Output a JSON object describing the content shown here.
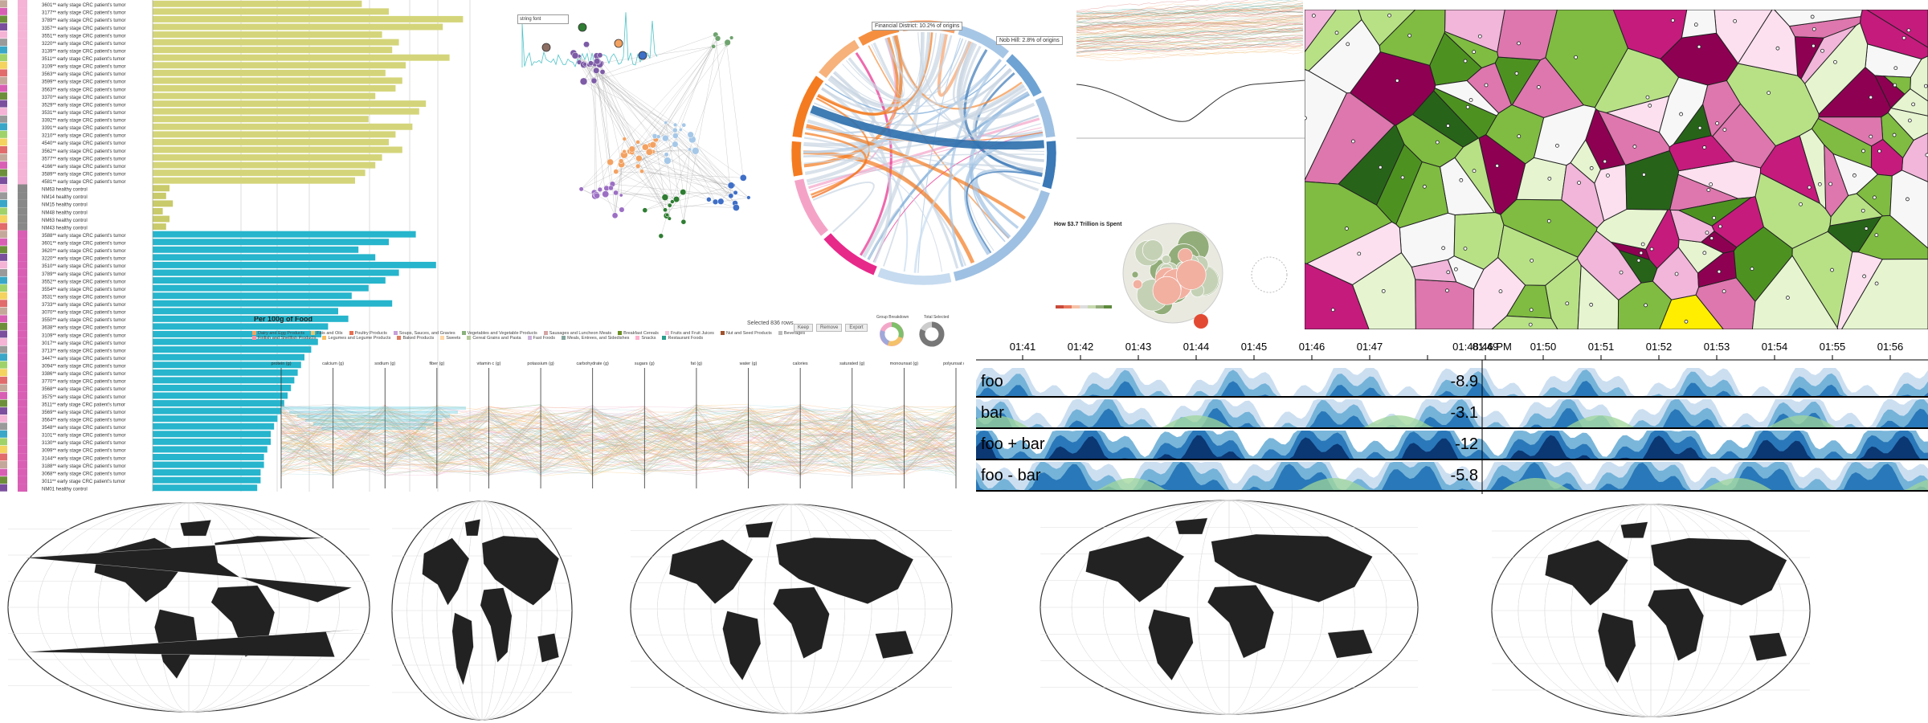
{
  "bar_panel": {
    "rows": [
      {
        "label": "3601** early stage CRC patient's tumor",
        "value": 0.62,
        "group": "tumor"
      },
      {
        "label": "3177** early stage CRC patient's tumor",
        "value": 0.7,
        "group": "tumor"
      },
      {
        "label": "3789** early stage CRC patient's tumor",
        "value": 0.92,
        "group": "tumor"
      },
      {
        "label": "3357** early stage CRC patient's tumor",
        "value": 0.86,
        "group": "tumor"
      },
      {
        "label": "3551** early stage CRC patient's tumor",
        "value": 0.68,
        "group": "tumor"
      },
      {
        "label": "3220** early stage CRC patient's tumor",
        "value": 0.73,
        "group": "tumor"
      },
      {
        "label": "3139** early stage CRC patient's tumor",
        "value": 0.71,
        "group": "tumor"
      },
      {
        "label": "3511** early stage CRC patient's tumor",
        "value": 0.88,
        "group": "tumor"
      },
      {
        "label": "3109** early stage CRC patient's tumor",
        "value": 0.75,
        "group": "tumor"
      },
      {
        "label": "3563** early stage CRC patient's tumor",
        "value": 0.69,
        "group": "tumor"
      },
      {
        "label": "3599** early stage CRC patient's tumor",
        "value": 0.74,
        "group": "tumor"
      },
      {
        "label": "3563** early stage CRC patient's tumor",
        "value": 0.72,
        "group": "tumor"
      },
      {
        "label": "3370** early stage CRC patient's tumor",
        "value": 0.66,
        "group": "tumor"
      },
      {
        "label": "3529** early stage CRC patient's tumor",
        "value": 0.81,
        "group": "tumor"
      },
      {
        "label": "3531** early stage CRC patient's tumor",
        "value": 0.79,
        "group": "tumor"
      },
      {
        "label": "3392** early stage CRC patient's tumor",
        "value": 0.64,
        "group": "tumor"
      },
      {
        "label": "3391** early stage CRC patient's tumor",
        "value": 0.77,
        "group": "tumor"
      },
      {
        "label": "3210** early stage CRC patient's tumor",
        "value": 0.72,
        "group": "tumor"
      },
      {
        "label": "4540** early stage CRC patient's tumor",
        "value": 0.7,
        "group": "tumor"
      },
      {
        "label": "3562** early stage CRC patient's tumor",
        "value": 0.74,
        "group": "tumor"
      },
      {
        "label": "3577** early stage CRC patient's tumor",
        "value": 0.68,
        "group": "tumor"
      },
      {
        "label": "4166** early stage CRC patient's tumor",
        "value": 0.66,
        "group": "tumor"
      },
      {
        "label": "3589** early stage CRC patient's tumor",
        "value": 0.63,
        "group": "tumor"
      },
      {
        "label": "4581** early stage CRC patient's tumor",
        "value": 0.6,
        "group": "tumor"
      },
      {
        "label": "NM63 healthy control",
        "value": 0.05,
        "group": "control"
      },
      {
        "label": "NM14 healthy control",
        "value": 0.04,
        "group": "control"
      },
      {
        "label": "NM15 healthy control",
        "value": 0.06,
        "group": "control"
      },
      {
        "label": "NM48 healthy control",
        "value": 0.03,
        "group": "control"
      },
      {
        "label": "NM63 healthy control",
        "value": 0.05,
        "group": "control"
      },
      {
        "label": "NM43 healthy control",
        "value": 0.04,
        "group": "control"
      },
      {
        "label": "3588** early stage CRC patient's tumor",
        "value": 0.78,
        "group": "tumor2"
      },
      {
        "label": "3601** early stage CRC patient's tumor",
        "value": 0.7,
        "group": "tumor2"
      },
      {
        "label": "3620** early stage CRC patient's tumor",
        "value": 0.61,
        "group": "tumor2"
      },
      {
        "label": "3220** early stage CRC patient's tumor",
        "value": 0.66,
        "group": "tumor2"
      },
      {
        "label": "3510** early stage CRC patient's tumor",
        "value": 0.84,
        "group": "tumor2"
      },
      {
        "label": "3789** early stage CRC patient's tumor",
        "value": 0.73,
        "group": "tumor2"
      },
      {
        "label": "3552** early stage CRC patient's tumor",
        "value": 0.69,
        "group": "tumor2"
      },
      {
        "label": "3554** early stage CRC patient's tumor",
        "value": 0.64,
        "group": "tumor2"
      },
      {
        "label": "3531** early stage CRC patient's tumor",
        "value": 0.59,
        "group": "tumor2"
      },
      {
        "label": "3733** early stage CRC patient's tumor",
        "value": 0.71,
        "group": "tumor2"
      },
      {
        "label": "3070** early stage CRC patient's tumor",
        "value": 0.55,
        "group": "tumor2"
      },
      {
        "label": "3550** early stage CRC patient's tumor",
        "value": 0.58,
        "group": "tumor2"
      },
      {
        "label": "3638** early stage CRC patient's tumor",
        "value": 0.52,
        "group": "tumor2"
      },
      {
        "label": "3109** early stage CRC patient's tumor",
        "value": 0.5,
        "group": "tumor2"
      },
      {
        "label": "3017** early stage CRC patient's tumor",
        "value": 0.49,
        "group": "tumor2"
      },
      {
        "label": "3713** early stage CRC patient's tumor",
        "value": 0.47,
        "group": "tumor2"
      },
      {
        "label": "3447** early stage CRC patient's tumor",
        "value": 0.45,
        "group": "tumor2"
      },
      {
        "label": "3094** early stage CRC patient's tumor",
        "value": 0.44,
        "group": "tumor2"
      },
      {
        "label": "3386** early stage CRC patient's tumor",
        "value": 0.43,
        "group": "tumor2"
      },
      {
        "label": "3770** early stage CRC patient's tumor",
        "value": 0.42,
        "group": "tumor2"
      },
      {
        "label": "3568** early stage CRC patient's tumor",
        "value": 0.41,
        "group": "tumor2"
      },
      {
        "label": "3575** early stage CRC patient's tumor",
        "value": 0.4,
        "group": "tumor2"
      },
      {
        "label": "3511** early stage CRC patient's tumor",
        "value": 0.39,
        "group": "tumor2"
      },
      {
        "label": "3569** early stage CRC patient's tumor",
        "value": 0.38,
        "group": "tumor2"
      },
      {
        "label": "3564** early stage CRC patient's tumor",
        "value": 0.37,
        "group": "tumor2"
      },
      {
        "label": "3548** early stage CRC patient's tumor",
        "value": 0.36,
        "group": "tumor2"
      },
      {
        "label": "3101** early stage CRC patient's tumor",
        "value": 0.35,
        "group": "tumor2"
      },
      {
        "label": "3130** early stage CRC patient's tumor",
        "value": 0.35,
        "group": "tumor2"
      },
      {
        "label": "3099** early stage CRC patient's tumor",
        "value": 0.34,
        "group": "tumor2"
      },
      {
        "label": "3144** early stage CRC patient's tumor",
        "value": 0.33,
        "group": "tumor2"
      },
      {
        "label": "3188** early stage CRC patient's tumor",
        "value": 0.33,
        "group": "tumor2"
      },
      {
        "label": "3068** early stage CRC patient's tumor",
        "value": 0.32,
        "group": "tumor2"
      },
      {
        "label": "3011** early stage CRC patient's tumor",
        "value": 0.32,
        "group": "tumor2"
      },
      {
        "label": "NM01 healthy control",
        "value": 0.31,
        "group": "tumor2"
      }
    ],
    "colors": {
      "tumor": "#d4d57a",
      "control": "#c9ca6a",
      "tumor2": "#26b5cc"
    }
  },
  "parallel": {
    "title": "Per 100g of Food",
    "legend": [
      "Dairy and Egg Products",
      "Fats and Oils",
      "Poultry Products",
      "Soups, Sauces, and Gravies",
      "Vegetables and Vegetable Products",
      "Sausages and Luncheon Meats",
      "Breakfast Cereals",
      "Fruits and Fruit Juices",
      "Nut and Seed Products",
      "Beverages",
      "Finfish and Shellfish Products",
      "Legumes and Legume Products",
      "Baked Products",
      "Sweets",
      "Cereal Grains and Pasta",
      "Fast Foods",
      "Meals, Entrees, and Sidedishes",
      "Snacks",
      "Restaurant Foods"
    ],
    "axes": [
      "protein (g)",
      "calcium (g)",
      "sodium (g)",
      "fiber (g)",
      "vitamin c (g)",
      "potassium (g)",
      "carbohydrate (g)",
      "sugars (g)",
      "fat (g)",
      "water (g)",
      "calories",
      "saturated (g)",
      "monounsat (g)",
      "polyunsat (g)"
    ],
    "selected": "Selected 836 rows",
    "buttons": [
      "Keep",
      "Remove",
      "Export"
    ],
    "group_breakdown": "Group Breakdown",
    "total_selected": "Total Selected"
  },
  "network": {
    "search_value": "string font"
  },
  "chord": {
    "tooltip1": "Financial District: 10.2% of origins",
    "tooltip2": "Nob Hill: 2.8% of origins"
  },
  "bubble": {
    "title": "How $3.7 Trillion is Spent"
  },
  "horizon": {
    "ticks": [
      "01:41",
      "01:42",
      "01:43",
      "01:44",
      "01:45",
      "01:46",
      "01:47",
      "01:48",
      "01:49",
      "01:50",
      "01:51",
      "01:52",
      "01:53",
      "01:54",
      "01:55",
      "01:56"
    ],
    "cursor_time": "01:48:46 PM",
    "rows": [
      {
        "name": "foo",
        "value": "-8.9"
      },
      {
        "name": "bar",
        "value": "-3.1"
      },
      {
        "name": "foo + bar",
        "value": "-12"
      },
      {
        "name": "foo - bar",
        "value": "-5.8"
      }
    ]
  },
  "voronoi": {
    "palette": [
      "#8e0152",
      "#c51b7d",
      "#de77ae",
      "#f1b6da",
      "#fde0ef",
      "#f7f7f7",
      "#e6f5d0",
      "#b8e186",
      "#7fbc41",
      "#4d9221",
      "#276419"
    ],
    "highlight": "#ffee00"
  }
}
